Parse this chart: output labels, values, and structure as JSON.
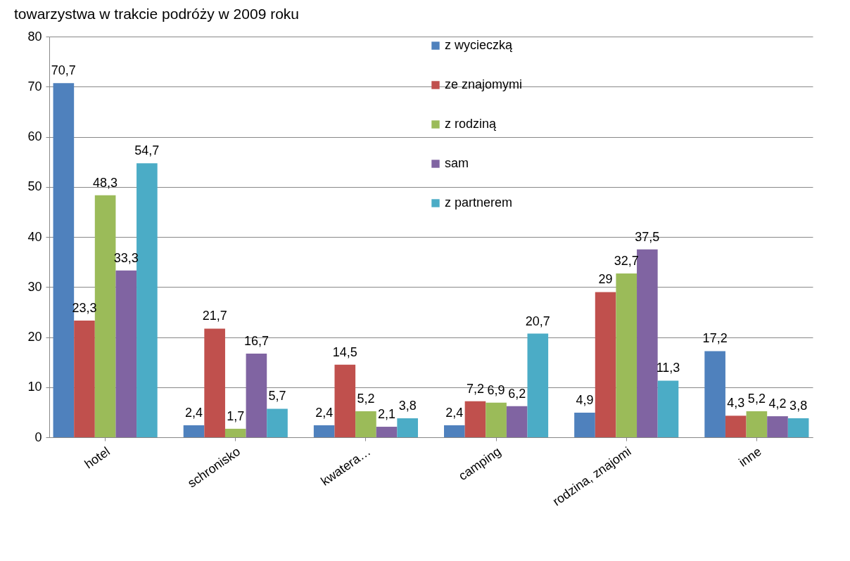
{
  "chart_data": {
    "type": "bar",
    "title": "towarzystwa w trakcie podróży w 2009 roku",
    "categories": [
      "hotel",
      "schronisko",
      "kwatera…",
      "camping",
      "rodzina, znajomi",
      "inne"
    ],
    "series": [
      {
        "name": "z wycieczką",
        "color": "#4f81bd",
        "values": [
          70.7,
          2.4,
          2.4,
          2.4,
          4.9,
          17.2
        ],
        "value_labels": [
          "70,7",
          "2,4",
          "2,4",
          "2,4",
          "4,9",
          "17,2"
        ]
      },
      {
        "name": "ze znajomymi",
        "color": "#c0504d",
        "values": [
          23.3,
          21.7,
          14.5,
          7.2,
          29,
          4.3
        ],
        "value_labels": [
          "23,3",
          "21,7",
          "14,5",
          "7,2",
          "29",
          "4,3"
        ]
      },
      {
        "name": "z rodziną",
        "color": "#9bbb59",
        "values": [
          48.3,
          1.7,
          5.2,
          6.9,
          32.7,
          5.2
        ],
        "value_labels": [
          "48,3",
          "1,7",
          "5,2",
          "6,9",
          "32,7",
          "5,2"
        ]
      },
      {
        "name": "sam",
        "color": "#8064a2",
        "values": [
          33.3,
          16.7,
          2.1,
          6.2,
          37.5,
          4.2
        ],
        "value_labels": [
          "33,3",
          "16,7",
          "2,1",
          "6,2",
          "37,5",
          "4,2"
        ]
      },
      {
        "name": "z partnerem",
        "color": "#4bacc6",
        "values": [
          54.7,
          5.7,
          3.8,
          20.7,
          11.3,
          3.8
        ],
        "value_labels": [
          "54,7",
          "5,7",
          "3,8",
          "20,7",
          "11,3",
          "3,8"
        ]
      }
    ],
    "ylim": [
      0,
      80
    ],
    "yticks": [
      0,
      10,
      20,
      30,
      40,
      50,
      60,
      70,
      80
    ],
    "grid": "y",
    "legend": "top"
  }
}
